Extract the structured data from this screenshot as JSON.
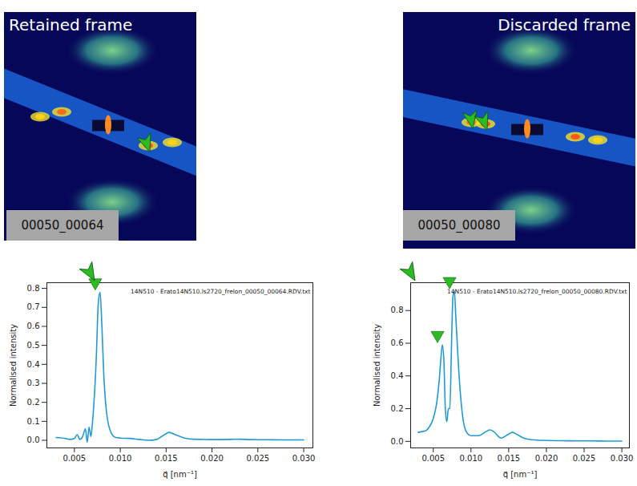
{
  "figure": {
    "images": [
      {
        "title": "Retained frame",
        "frame_label": "00050_00064"
      },
      {
        "title": "Discarded frame",
        "frame_label": "00050_00080"
      }
    ]
  },
  "chart_data": [
    {
      "type": "line",
      "annotation": "14N510 - Erato14N510.ls2720_frelon_00050_00064.RDV.txt",
      "x_label": "q⃗ [nm⁻¹]",
      "y_label": "Normalised intensity",
      "color": "#1f9ad6",
      "x": [
        0.003,
        0.0035,
        0.004,
        0.0045,
        0.005,
        0.0053,
        0.0056,
        0.0059,
        0.0062,
        0.0064,
        0.0066,
        0.0068,
        0.007,
        0.0074,
        0.0076,
        0.0078,
        0.008,
        0.0082,
        0.0085,
        0.009,
        0.0095,
        0.01,
        0.011,
        0.012,
        0.013,
        0.014,
        0.0145,
        0.015,
        0.0153,
        0.016,
        0.017,
        0.018,
        0.02,
        0.022,
        0.023,
        0.024,
        0.026,
        0.028,
        0.03
      ],
      "values": [
        0.015,
        0.013,
        0.01,
        0.005,
        0.01,
        0.03,
        0.005,
        0.02,
        0.06,
        -0.01,
        0.07,
        0.02,
        0.11,
        0.45,
        0.72,
        0.78,
        0.6,
        0.35,
        0.15,
        0.04,
        0.015,
        0.012,
        0.01,
        0.005,
        0.0,
        0.005,
        0.02,
        0.035,
        0.042,
        0.03,
        0.012,
        0.006,
        0.004,
        0.005,
        0.006,
        0.004,
        0.003,
        0.002,
        0.002
      ],
      "xlim": [
        0.002,
        0.031
      ],
      "xticks": [
        0.005,
        {
          "value": 0.01,
          "label": "0.010"
        },
        0.015,
        {
          "value": 0.02,
          "label": "0.020"
        },
        0.025,
        {
          "value": 0.03,
          "label": "0.030"
        }
      ],
      "ylim": [
        -0.04,
        0.83
      ],
      "yticks": [
        {
          "value": 0,
          "label": "0.0"
        },
        0.1,
        0.2,
        0.3,
        0.4,
        0.5,
        0.6,
        0.7,
        0.8
      ]
    },
    {
      "type": "line",
      "annotation": "14N510 - Erato14N510.ls2720_frelon_00050_00080.RDV.txt",
      "x_label": "q⃗ [nm⁻¹]",
      "y_label": "Normalised intensity",
      "color": "#1f9ad6",
      "x": [
        0.003,
        0.0035,
        0.004,
        0.0045,
        0.005,
        0.0055,
        0.0058,
        0.006,
        0.0062,
        0.0064,
        0.0066,
        0.0068,
        0.007,
        0.0072,
        0.0074,
        0.0076,
        0.0078,
        0.008,
        0.0085,
        0.009,
        0.0095,
        0.01,
        0.011,
        0.012,
        0.0125,
        0.013,
        0.014,
        0.015,
        0.0155,
        0.016,
        0.017,
        0.018,
        0.02,
        0.022,
        0.024,
        0.026,
        0.028,
        0.03
      ],
      "values": [
        0.055,
        0.06,
        0.065,
        0.09,
        0.14,
        0.25,
        0.38,
        0.5,
        0.59,
        0.5,
        0.2,
        0.12,
        0.2,
        0.2,
        0.55,
        0.88,
        0.92,
        0.75,
        0.35,
        0.12,
        0.05,
        0.035,
        0.035,
        0.06,
        0.07,
        0.06,
        0.02,
        0.045,
        0.055,
        0.045,
        0.02,
        0.01,
        0.005,
        0.004,
        0.003,
        0.003,
        0.002,
        0.002
      ],
      "xlim": [
        0.002,
        0.031
      ],
      "xticks": [
        0.005,
        {
          "value": 0.01,
          "label": "0.010"
        },
        0.015,
        {
          "value": 0.02,
          "label": "0.020"
        },
        0.025,
        {
          "value": 0.03,
          "label": "0.030"
        }
      ],
      "ylim": [
        -0.04,
        0.97
      ],
      "yticks": [
        {
          "value": 0,
          "label": "0.0"
        },
        0.2,
        0.4,
        0.6,
        0.8
      ]
    }
  ]
}
